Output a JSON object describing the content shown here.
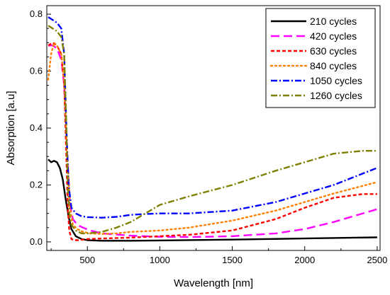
{
  "chart_data": {
    "type": "line",
    "title": "",
    "xlabel": "Wavelength [nm]",
    "ylabel": "Absorption [a.u]",
    "xlim": [
      220,
      2520
    ],
    "ylim": [
      -0.03,
      0.83
    ],
    "x_ticks": [
      500,
      1000,
      1500,
      2000,
      2500
    ],
    "x_tick_labels": [
      "500",
      "1000",
      "1500",
      "2000",
      "2500"
    ],
    "y_ticks": [
      0.0,
      0.2,
      0.4,
      0.6,
      0.8
    ],
    "y_tick_labels": [
      "0.0",
      "0.2",
      "0.4",
      "0.6",
      "0.8"
    ],
    "grid": false,
    "legend_position": "top-right",
    "series": [
      {
        "name": "210 cycles",
        "color": "#000000",
        "dash": "solid",
        "x": [
          230,
          250,
          270,
          290,
          310,
          330,
          350,
          370,
          390,
          420,
          460,
          500,
          600,
          800,
          1000,
          1500,
          2000,
          2500
        ],
        "y": [
          0.29,
          0.28,
          0.285,
          0.28,
          0.26,
          0.22,
          0.15,
          0.09,
          0.045,
          0.02,
          0.01,
          0.006,
          0.004,
          0.004,
          0.005,
          0.008,
          0.012,
          0.016
        ]
      },
      {
        "name": "420 cycles",
        "color": "#ff00ff",
        "dash": "long",
        "x": [
          230,
          260,
          290,
          320,
          340,
          360,
          380,
          400,
          430,
          470,
          520,
          600,
          800,
          1000,
          1200,
          1500,
          1800,
          2000,
          2200,
          2500
        ],
        "y": [
          0.69,
          0.69,
          0.68,
          0.64,
          0.55,
          0.32,
          0.13,
          0.08,
          0.06,
          0.05,
          0.04,
          0.03,
          0.022,
          0.018,
          0.017,
          0.02,
          0.03,
          0.045,
          0.07,
          0.115
        ]
      },
      {
        "name": "630 cycles",
        "color": "#ff0000",
        "dash": "dash",
        "x": [
          230,
          260,
          290,
          320,
          340,
          355,
          365,
          375,
          390,
          410,
          440,
          500,
          600,
          800,
          1000,
          1200,
          1500,
          1800,
          2000,
          2200,
          2400,
          2500
        ],
        "y": [
          0.69,
          0.7,
          0.69,
          0.66,
          0.56,
          0.3,
          0.12,
          0.04,
          0.01,
          0.006,
          0.006,
          0.01,
          0.012,
          0.015,
          0.02,
          0.025,
          0.04,
          0.08,
          0.12,
          0.155,
          0.168,
          0.168
        ]
      },
      {
        "name": "840 cycles",
        "color": "#ff8000",
        "dash": "dot",
        "x": [
          230,
          250,
          270,
          290,
          320,
          340,
          360,
          380,
          400,
          430,
          470,
          520,
          600,
          700,
          800,
          1000,
          1200,
          1500,
          1800,
          2000,
          2200,
          2500
        ],
        "y": [
          0.57,
          0.66,
          0.7,
          0.69,
          0.66,
          0.56,
          0.32,
          0.12,
          0.06,
          0.045,
          0.035,
          0.03,
          0.028,
          0.03,
          0.035,
          0.04,
          0.05,
          0.075,
          0.11,
          0.14,
          0.17,
          0.21
        ]
      },
      {
        "name": "1050 cycles",
        "color": "#0000ff",
        "dash": "dashdot",
        "x": [
          230,
          260,
          290,
          320,
          340,
          355,
          370,
          390,
          420,
          460,
          500,
          600,
          700,
          800,
          900,
          1000,
          1200,
          1500,
          1800,
          2000,
          2200,
          2500
        ],
        "y": [
          0.79,
          0.78,
          0.77,
          0.75,
          0.66,
          0.4,
          0.2,
          0.12,
          0.1,
          0.09,
          0.087,
          0.085,
          0.088,
          0.095,
          0.098,
          0.1,
          0.1,
          0.11,
          0.14,
          0.17,
          0.2,
          0.26
        ]
      },
      {
        "name": "1260 cycles",
        "color": "#808000",
        "dash": "dashdot",
        "x": [
          230,
          260,
          290,
          320,
          340,
          355,
          365,
          375,
          390,
          420,
          460,
          500,
          600,
          700,
          800,
          900,
          1000,
          1200,
          1500,
          1800,
          2000,
          2200,
          2400,
          2500
        ],
        "y": [
          0.76,
          0.75,
          0.74,
          0.72,
          0.66,
          0.4,
          0.2,
          0.1,
          0.06,
          0.04,
          0.03,
          0.03,
          0.035,
          0.05,
          0.07,
          0.1,
          0.13,
          0.16,
          0.2,
          0.25,
          0.28,
          0.31,
          0.32,
          0.32
        ]
      }
    ]
  }
}
